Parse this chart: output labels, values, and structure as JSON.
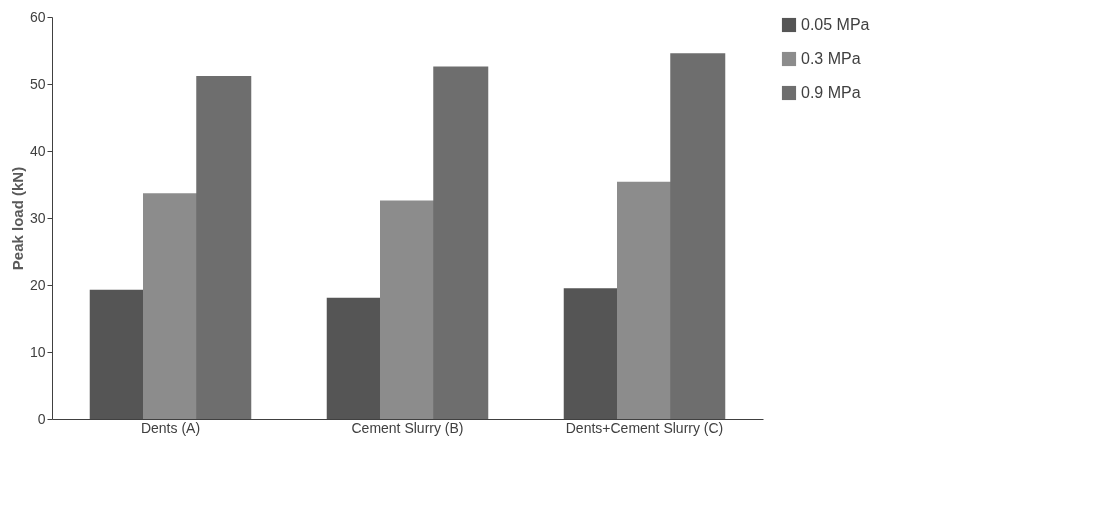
{
  "chart_data": {
    "type": "bar",
    "ylabel": "Peak load (kN)",
    "categories": [
      "Dents (A)",
      "Cement Slurry (B)",
      "Dents+Cement Slurry (C)"
    ],
    "series": [
      {
        "name": "0.05 MPa",
        "color": "#555555",
        "values": [
          19.3,
          18.1,
          19.5
        ]
      },
      {
        "name": "0.3 MPa",
        "color": "#8c8c8c",
        "values": [
          33.7,
          32.6,
          35.4
        ]
      },
      {
        "name": "0.9 MPa",
        "color": "#6e6e6e",
        "values": [
          51.2,
          52.6,
          54.6
        ]
      }
    ],
    "ylim": [
      0,
      60
    ],
    "yticks": [
      0,
      10,
      20,
      30,
      40,
      50,
      60
    ],
    "grid": false,
    "legend": "right"
  }
}
